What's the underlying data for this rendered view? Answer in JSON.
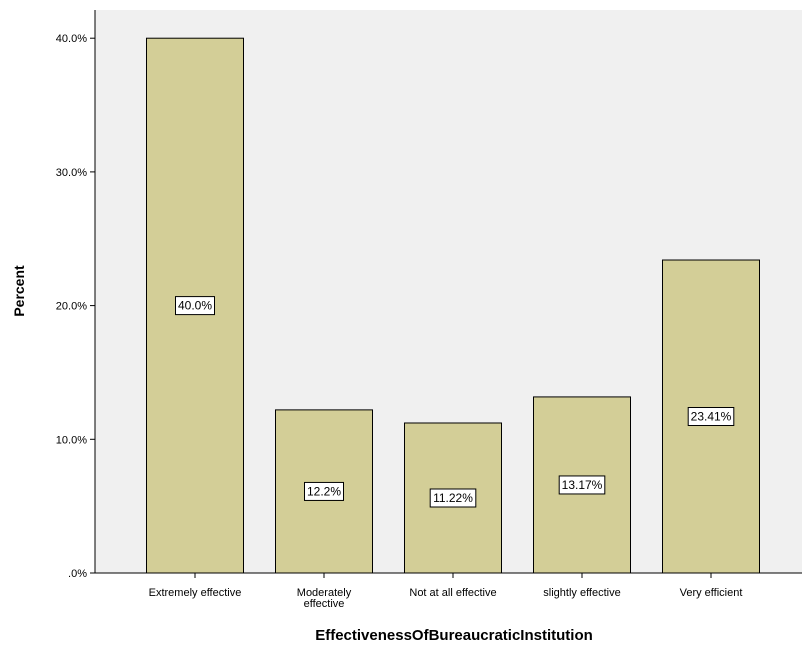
{
  "chart_data": {
    "type": "bar",
    "title": "",
    "xlabel": "EffectivenessOfBureaucraticInstitution",
    "ylabel": "Percent",
    "categories": [
      [
        "Extremely effective"
      ],
      [
        "Moderately",
        "effective"
      ],
      [
        "Not at all effective"
      ],
      [
        "slightly effective"
      ],
      [
        "Very efficient"
      ]
    ],
    "values": [
      40.0,
      12.2,
      11.22,
      13.17,
      23.41
    ],
    "data_labels": [
      "40.0%",
      "12.2%",
      "11.22%",
      "13.17%",
      "23.41%"
    ],
    "ylim": [
      0,
      42.2
    ],
    "yticks": [
      0,
      10,
      20,
      30,
      40
    ],
    "ytick_labels": [
      ".0%",
      "10.0%",
      "20.0%",
      "30.0%",
      "40.0%"
    ],
    "grid": false,
    "colors": {
      "bar_fill": "#d3ce97",
      "bar_stroke": "#000000",
      "plot_background": "#f0f0f0",
      "axis": "#000000"
    }
  }
}
